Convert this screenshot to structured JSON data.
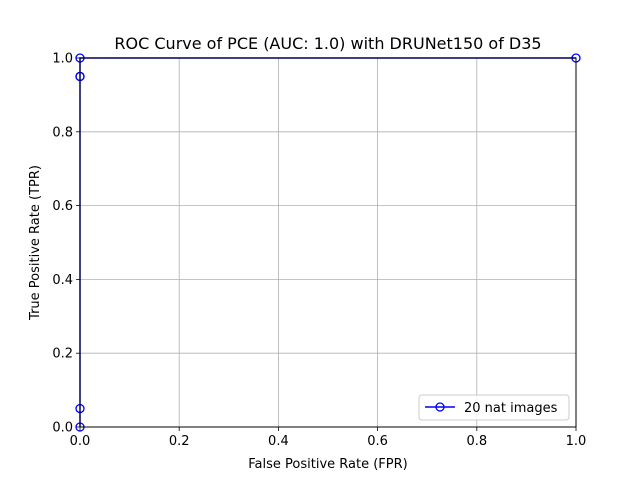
{
  "chart_data": {
    "type": "line",
    "title": "ROC Curve of PCE (AUC: 1.0) with DRUNet150 of D35",
    "xlabel": "False Positive Rate (FPR)",
    "ylabel": "True Positive Rate (TPR)",
    "xlim": [
      0.0,
      1.0
    ],
    "ylim": [
      0.0,
      1.0
    ],
    "x_ticks": [
      "0.0",
      "0.2",
      "0.4",
      "0.6",
      "0.8",
      "1.0"
    ],
    "y_ticks": [
      "0.0",
      "0.2",
      "0.4",
      "0.6",
      "0.8",
      "1.0"
    ],
    "grid": true,
    "legend_position": "bottom-right",
    "series": [
      {
        "name": "20 nat images",
        "color": "#0000ff",
        "marker": "open-circle",
        "x": [
          0.0,
          0.0,
          0.0,
          0.0,
          0.0,
          1.0
        ],
        "y": [
          0.0,
          0.05,
          0.95,
          0.95,
          1.0,
          1.0
        ]
      }
    ]
  }
}
